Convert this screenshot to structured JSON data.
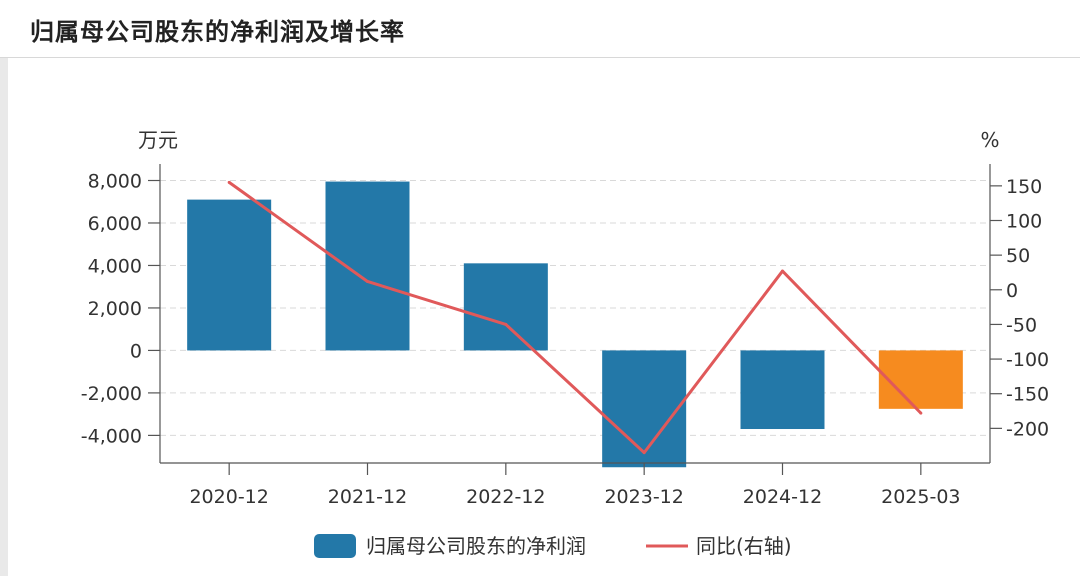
{
  "title": "归属母公司股东的净利润及增长率",
  "colors": {
    "bar": "#2378a8",
    "bar_forecast": "#f68b1f",
    "line": "#e0595a",
    "axis": "#555555",
    "grid": "#d9d9d9"
  },
  "chart_data": {
    "type": "bar",
    "categories": [
      "2020-12",
      "2021-12",
      "2022-12",
      "2023-12",
      "2024-12",
      "2025-03"
    ],
    "series": [
      {
        "name": "归属母公司股东的净利润",
        "type": "bar",
        "axis": "left",
        "values": [
          7100,
          7950,
          4100,
          -5500,
          -3700,
          -2750
        ],
        "colors": [
          "#2378a8",
          "#2378a8",
          "#2378a8",
          "#2378a8",
          "#2378a8",
          "#f68b1f"
        ]
      },
      {
        "name": "同比(右轴)",
        "type": "line",
        "axis": "right",
        "values": [
          155,
          12,
          -50,
          -235,
          27,
          -178
        ]
      }
    ],
    "left_axis": {
      "unit": "万元",
      "range": [
        -5300,
        8400
      ],
      "ticks": [
        8000,
        6000,
        4000,
        2000,
        0,
        -2000,
        -4000
      ],
      "tick_labels": [
        "8,000",
        "6,000",
        "4,000",
        "2,000",
        "0",
        "-2,000",
        "-4,000"
      ]
    },
    "right_axis": {
      "unit": "%",
      "range": [
        -250,
        170
      ],
      "ticks": [
        150,
        100,
        50,
        0,
        -50,
        -100,
        -150,
        -200
      ],
      "tick_labels": [
        "150",
        "100",
        "50",
        "0",
        "-50",
        "-100",
        "-150",
        "-200"
      ]
    },
    "grid": true,
    "legend_position": "bottom"
  }
}
